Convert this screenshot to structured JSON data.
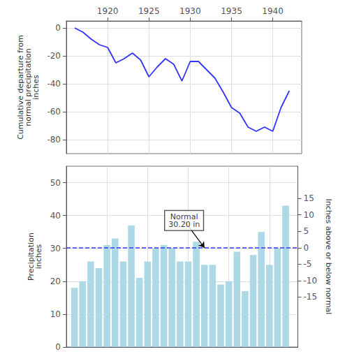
{
  "chart_data": [
    {
      "type": "line",
      "x": [
        1916,
        1917,
        1918,
        1919,
        1920,
        1921,
        1922,
        1923,
        1924,
        1925,
        1926,
        1927,
        1928,
        1929,
        1930,
        1931,
        1932,
        1933,
        1934,
        1935,
        1936,
        1937,
        1938,
        1939,
        1940,
        1941,
        1942
      ],
      "values": [
        0,
        -3,
        -8,
        -12,
        -14,
        -25,
        -22,
        -18,
        -23,
        -35,
        -28,
        -22,
        -26,
        -38,
        -24,
        -24,
        -30,
        -36,
        -46,
        -57,
        -61,
        -71,
        -74,
        -71,
        -74,
        -57,
        -45
      ],
      "color": "#3333ff",
      "xlim": [
        1915.0,
        1943.5
      ],
      "xticks": [
        1920,
        1925,
        1930,
        1935,
        1940
      ],
      "ylim": [
        -90,
        5
      ],
      "yticks": [
        0,
        -20,
        -40,
        -60,
        -80
      ],
      "ylabel": "Cumulative departure from\nnormal precipitation\ninches",
      "grid": true
    },
    {
      "type": "bar",
      "x": [
        1916,
        1917,
        1918,
        1919,
        1920,
        1921,
        1922,
        1923,
        1924,
        1925,
        1926,
        1927,
        1928,
        1929,
        1930,
        1931,
        1932,
        1933,
        1934,
        1935,
        1936,
        1937,
        1938,
        1939,
        1940,
        1941,
        1942
      ],
      "values": [
        18,
        20,
        26,
        24,
        31,
        33,
        26,
        37,
        21,
        26,
        30,
        31,
        30,
        26,
        26,
        32,
        25,
        25,
        19,
        20,
        29,
        17,
        28,
        35,
        25,
        30,
        43
      ],
      "color": "#add8e6",
      "xlim": [
        1915.0,
        1943.5
      ],
      "xticks": [
        1920,
        1925,
        1930,
        1935,
        1940
      ],
      "ylim": [
        0,
        55
      ],
      "yticks": [
        0,
        10,
        20,
        30,
        40,
        50
      ],
      "ylabel": "Precipitation\ninches",
      "y2lim": [
        -30.2,
        24.8
      ],
      "y2ticks": [
        -15,
        -10,
        -5,
        0,
        5,
        10,
        15
      ],
      "y2label": "Inches above or below normal",
      "grid": true,
      "tick_labels": "y",
      "reference_line": {
        "value": 30.2,
        "color": "#3333ff",
        "line_style": "dashed"
      },
      "annotations": [
        {
          "text": "Normal\n30.20 in",
          "x": 1929.5,
          "y": 38.5,
          "arrow_x": 1932.0,
          "arrow_y": 30.2
        }
      ]
    }
  ]
}
